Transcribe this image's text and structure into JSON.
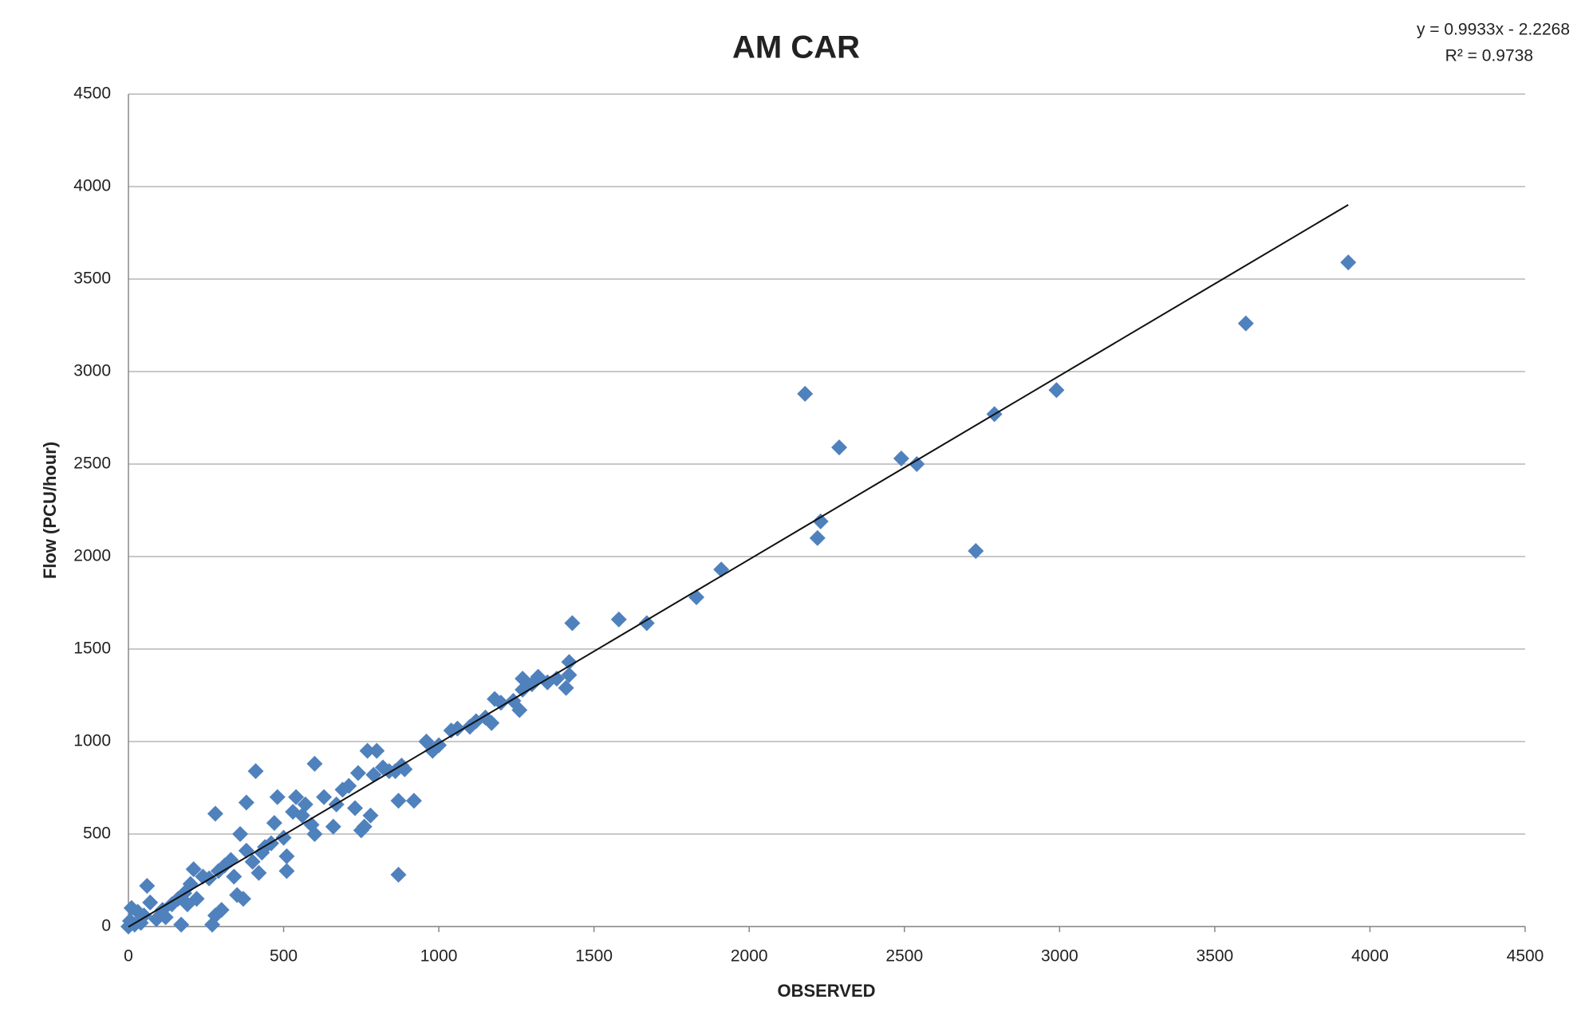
{
  "chart_data": {
    "type": "scatter",
    "title": "AM CAR",
    "x_label": "OBSERVED",
    "y_label": "Flow (PCU/hour)",
    "trendline": {
      "equation": "y = 0.9933x - 2.2268",
      "r_squared": "R² = 0.9738",
      "slope": 0.9933,
      "intercept": -2.2268,
      "color": "#111111"
    },
    "marker_color": "#4f81bd",
    "x": [
      2180,
      2290,
      2490,
      2540,
      2230,
      2220,
      2730,
      2790,
      2990,
      3600,
      3930,
      1910,
      1830,
      1670,
      1580,
      1430,
      1420,
      1410,
      1420,
      1380,
      1350,
      1320,
      1300,
      1270,
      1270,
      1260,
      1240,
      1200,
      1180,
      1170,
      1150,
      1120,
      1100,
      1060,
      1040,
      1000,
      980,
      960,
      920,
      890,
      880,
      860,
      870,
      870,
      840,
      820,
      800,
      790,
      780,
      770,
      760,
      750,
      740,
      730,
      710,
      690,
      670,
      660,
      630,
      600,
      600,
      590,
      570,
      560,
      540,
      530,
      510,
      510,
      500,
      480,
      470,
      460,
      440,
      430,
      420,
      410,
      400,
      380,
      380,
      370,
      360,
      350,
      340,
      330,
      310,
      300,
      290,
      280,
      280,
      270,
      260,
      240,
      220,
      210,
      200,
      190,
      180,
      170,
      160,
      140,
      120,
      110,
      90,
      70,
      60,
      50,
      40,
      30,
      20,
      10,
      5,
      0
    ],
    "y": [
      2880,
      2590,
      2530,
      2500,
      2190,
      2100,
      2030,
      2770,
      2900,
      3260,
      3590,
      1930,
      1780,
      1640,
      1660,
      1640,
      1430,
      1290,
      1360,
      1340,
      1320,
      1350,
      1310,
      1340,
      1280,
      1170,
      1220,
      1210,
      1230,
      1100,
      1130,
      1110,
      1080,
      1070,
      1060,
      980,
      950,
      1000,
      680,
      850,
      870,
      840,
      680,
      280,
      840,
      860,
      950,
      820,
      600,
      950,
      540,
      520,
      830,
      640,
      760,
      740,
      660,
      540,
      700,
      880,
      500,
      550,
      660,
      600,
      700,
      620,
      300,
      380,
      480,
      700,
      560,
      450,
      430,
      400,
      290,
      840,
      350,
      670,
      410,
      150,
      500,
      170,
      270,
      360,
      330,
      90,
      300,
      610,
      60,
      10,
      260,
      270,
      150,
      310,
      230,
      120,
      180,
      10,
      150,
      120,
      50,
      90,
      40,
      130,
      220,
      60,
      20,
      80,
      10,
      100,
      30,
      0
    ],
    "xlim": [
      0,
      4500
    ],
    "ylim": [
      0,
      4500
    ],
    "xticks": [
      0,
      500,
      1000,
      1500,
      2000,
      2500,
      3000,
      3500,
      4000,
      4500
    ],
    "yticks": [
      0,
      500,
      1000,
      1500,
      2000,
      2500,
      3000,
      3500,
      4000,
      4500
    ],
    "grid": true
  }
}
